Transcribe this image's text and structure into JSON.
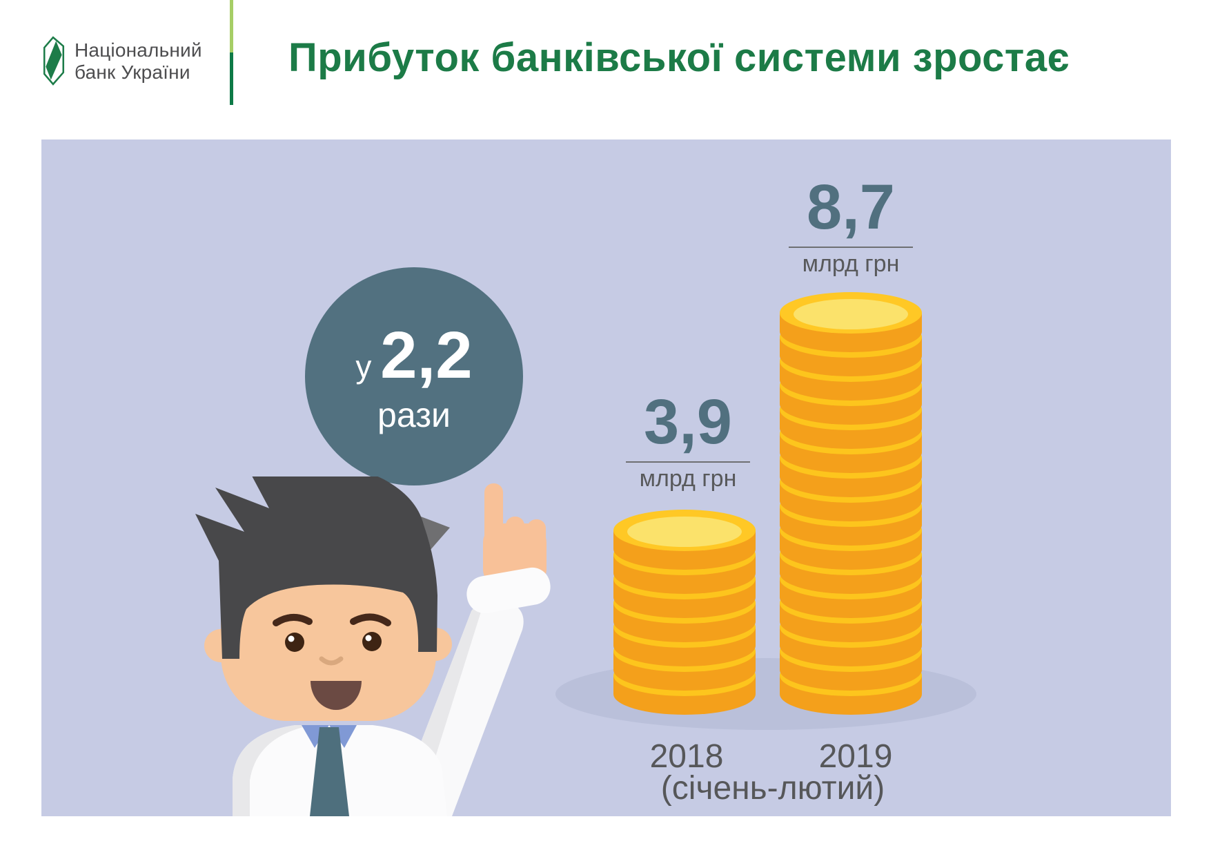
{
  "header": {
    "logo": {
      "line1": "Національний",
      "line2": "банк України"
    },
    "title": "Прибуток банківської системи зростає"
  },
  "badge": {
    "prefix": "у",
    "multiplier": "2,2",
    "suffix": "рази"
  },
  "chart_data": {
    "type": "bar",
    "title": "Прибуток банківської системи зростає",
    "categories": [
      "2018",
      "2019"
    ],
    "values": [
      3.9,
      8.7
    ],
    "value_labels": [
      "3,9",
      "8,7"
    ],
    "unit": "млрд грн",
    "period_note": "(січень-лютий)",
    "growth_note": "у 2,2 рази",
    "coin_counts": [
      7,
      16
    ],
    "grid": false,
    "legend_position": "none"
  },
  "colors": {
    "panel_bg": "#c6cbe4",
    "accent_teal": "#527180",
    "brand_green": "#1c7b47",
    "divider_light_green": "#a6ce66",
    "divider_dark_green": "#0e7a47",
    "coin_side": "#f4a01b",
    "coin_rim": "#fdc51d",
    "coin_top_rim": "#ffc825",
    "coin_face": "#fbe26b",
    "shadow": "#bac0da",
    "text_gray": "#58595b"
  }
}
